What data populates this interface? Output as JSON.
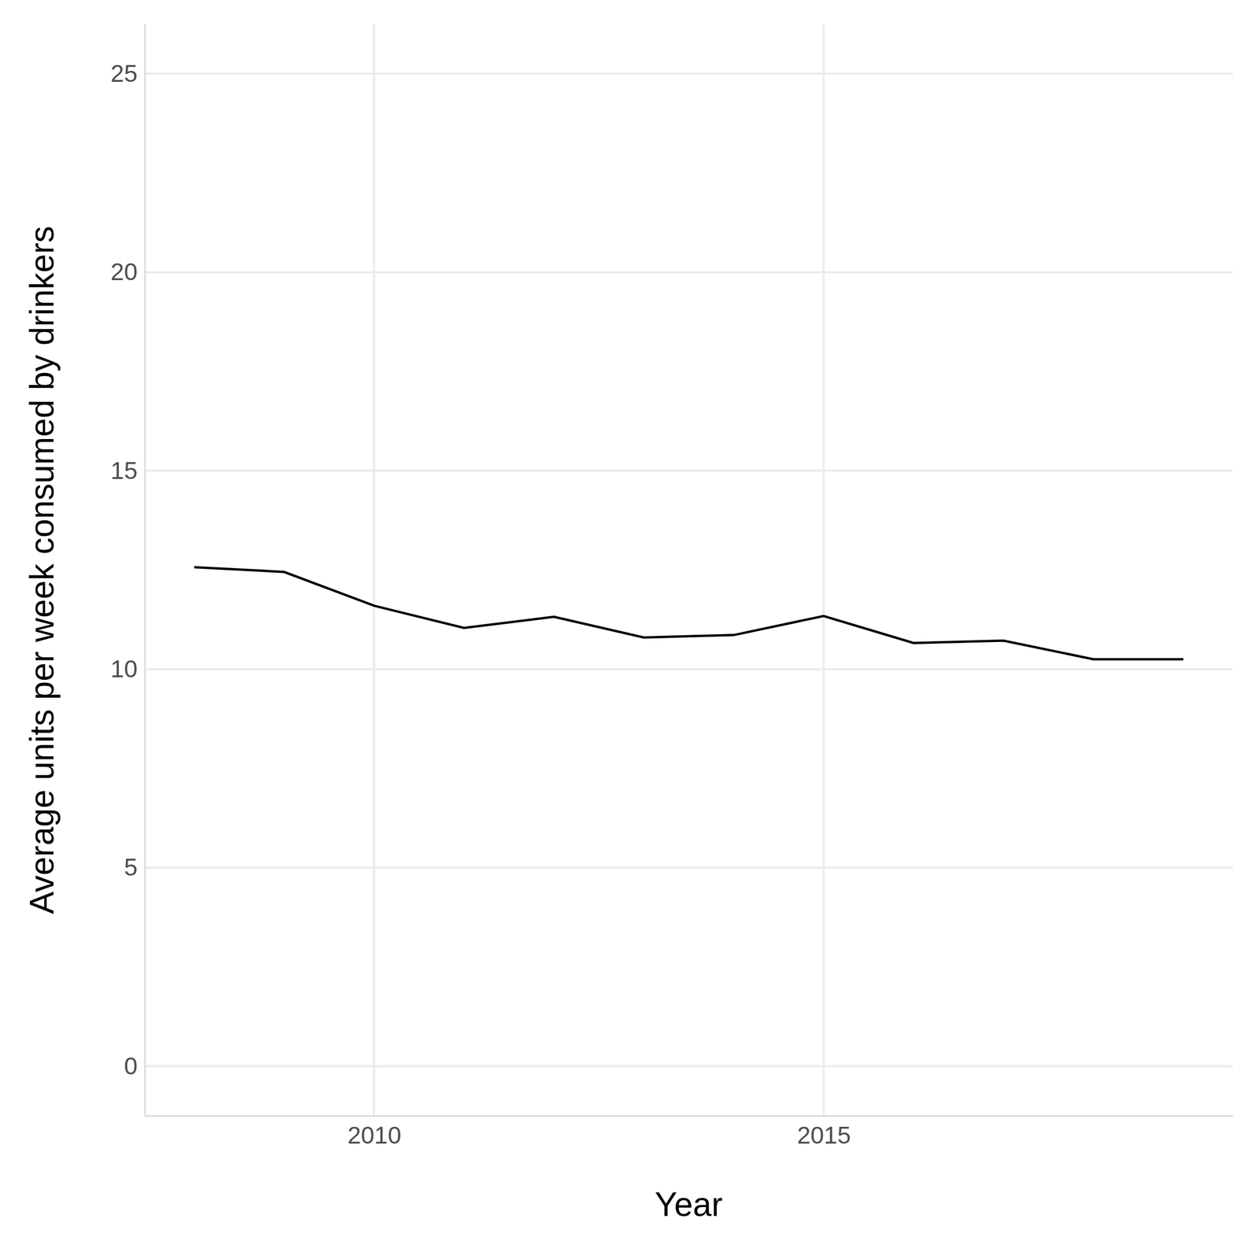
{
  "chart_data": {
    "type": "line",
    "x_label": "Year",
    "y_label": "Average units per week consumed by drinkers",
    "x": [
      2008,
      2009,
      2010,
      2011,
      2012,
      2013,
      2014,
      2015,
      2016,
      2017,
      2018,
      2019
    ],
    "values": [
      12.57,
      12.45,
      11.6,
      11.04,
      11.32,
      10.8,
      10.86,
      11.34,
      10.66,
      10.72,
      10.25,
      10.25
    ],
    "color": "#000000",
    "xlim": [
      2007.45,
      2019.55
    ],
    "xticks": [
      2010,
      2015
    ],
    "ylim": [
      -1.25,
      26.25
    ],
    "yticks": [
      0,
      5,
      10,
      15,
      20,
      25
    ],
    "grid": true
  }
}
